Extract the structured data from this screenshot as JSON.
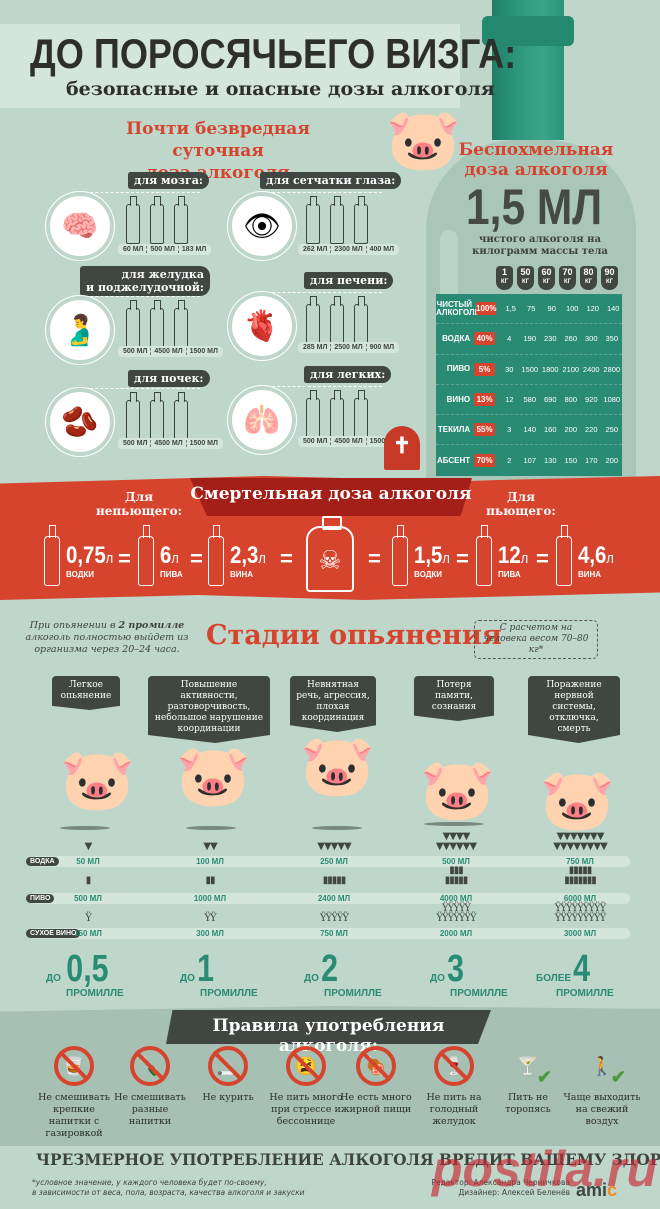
{
  "header": {
    "title": "ДО ПОРОСЯЧЬЕГО ВИЗГА:",
    "subtitle": "безопасные и опасные дозы алкоголя"
  },
  "safe_dose": {
    "title_line1": "Почти безвредная суточная",
    "title_line2": "доза алкоголя",
    "organs": [
      {
        "label": "для мозга:",
        "icon": "brain-icon",
        "values": [
          "60 МЛ",
          "500 МЛ",
          "183 МЛ"
        ]
      },
      {
        "label": "для сетчатки глаза:",
        "icon": "eye-icon",
        "values": [
          "262 МЛ",
          "2300 МЛ",
          "400 МЛ"
        ]
      },
      {
        "label_line1": "для желудка",
        "label_line2": "и поджелудочной:",
        "icon": "stomach-icon",
        "values": [
          "500 МЛ",
          "4500 МЛ",
          "1500 МЛ"
        ]
      },
      {
        "label": "для печени:",
        "icon": "liver-icon",
        "values": [
          "285 МЛ",
          "2500 МЛ",
          "900 МЛ"
        ]
      },
      {
        "label": "для почек:",
        "icon": "kidneys-icon",
        "values": [
          "500 МЛ",
          "4500 МЛ",
          "1500 МЛ"
        ]
      },
      {
        "label": "для легких:",
        "icon": "lungs-icon",
        "values": [
          "500 МЛ",
          "4500 МЛ",
          "1500 МЛ"
        ]
      }
    ]
  },
  "hangover_free": {
    "title_line1": "Беспохмельная",
    "title_line2": "доза алкоголя",
    "dose": "1,5 МЛ",
    "sub_line1": "чистого алкоголя на",
    "sub_line2": "килограмм массы тела",
    "weights": [
      {
        "num": "1",
        "pre": "НА",
        "unit": "КГ"
      },
      {
        "num": "50",
        "unit": "КГ"
      },
      {
        "num": "60",
        "unit": "КГ"
      },
      {
        "num": "70",
        "unit": "КГ"
      },
      {
        "num": "80",
        "unit": "КГ"
      },
      {
        "num": "90",
        "unit": "КГ"
      }
    ],
    "rows": [
      {
        "name": "ЧИСТЫЙ АЛКОГОЛЬ",
        "pct": "100%",
        "values": [
          "1,5",
          "75",
          "90",
          "100",
          "120",
          "140"
        ]
      },
      {
        "name": "ВОДКА",
        "pct": "40%",
        "values": [
          "4",
          "190",
          "230",
          "260",
          "300",
          "350"
        ]
      },
      {
        "name": "ПИВО",
        "pct": "5%",
        "values": [
          "30",
          "1500",
          "1800",
          "2100",
          "2400",
          "2800"
        ]
      },
      {
        "name": "ВИНО",
        "pct": "13%",
        "values": [
          "12",
          "580",
          "690",
          "800",
          "920",
          "1080"
        ]
      },
      {
        "name": "ТЕКИЛА",
        "pct": "55%",
        "values": [
          "3",
          "140",
          "160",
          "200",
          "220",
          "250"
        ]
      },
      {
        "name": "АБСЕНТ",
        "pct": "70%",
        "values": [
          "2",
          "107",
          "130",
          "150",
          "170",
          "200"
        ]
      }
    ]
  },
  "lethal": {
    "title": "Смертельная доза алкоголя",
    "non_drinker_line1": "Для",
    "non_drinker_line2": "непьющего:",
    "drinker_line1": "Для",
    "drinker_line2": "пьющего:",
    "non_drinker": [
      {
        "value": "0,75",
        "unit": "л",
        "drink": "ВОДКИ"
      },
      {
        "value": "6",
        "unit": "л",
        "drink": "ПИВА"
      },
      {
        "value": "2,3",
        "unit": "л",
        "drink": "ВИНА"
      }
    ],
    "drinker": [
      {
        "value": "1,5",
        "unit": "л",
        "drink": "ВОДКИ"
      },
      {
        "value": "12",
        "unit": "л",
        "drink": "ПИВА"
      },
      {
        "value": "4,6",
        "unit": "л",
        "drink": "ВИНА"
      }
    ],
    "equals": "="
  },
  "stages": {
    "note_pre": "При опьянении в ",
    "note_bold": "2 промилле",
    "note_post": " алкоголь полностью выйдет из организма через 20–24 часа.",
    "title": "Стадии опьянения",
    "calc_note": "С расчетом на человека весом 70–80 кг*",
    "descriptions": [
      "Легкое опьянение",
      "Повышение активности, разговорчивость, небольшое нарушение координации",
      "Невнятная речь, агрессия, плохая координация",
      "Потеря памяти, сознания",
      "Поражение нервной системы, отключка, смерть"
    ],
    "drinks": [
      {
        "label": "ВОДКА",
        "values": [
          "50 МЛ",
          "100 МЛ",
          "250 МЛ",
          "500 МЛ",
          "750 МЛ"
        ]
      },
      {
        "label": "ПИВО",
        "values": [
          "500 МЛ",
          "1000 МЛ",
          "2400 МЛ",
          "4000 МЛ",
          "6000 МЛ"
        ]
      },
      {
        "label": "СУХОЕ ВИНО",
        "values": [
          "150 МЛ",
          "300 МЛ",
          "750 МЛ",
          "2000 МЛ",
          "3000 МЛ"
        ]
      }
    ],
    "permille": [
      {
        "pre": "ДО",
        "num": "0,5",
        "unit": "ПРОМИЛЛЕ"
      },
      {
        "pre": "ДО",
        "num": "1",
        "unit": "ПРОМИЛЛЕ"
      },
      {
        "pre": "ДО",
        "num": "2",
        "unit": "ПРОМИЛЛЕ"
      },
      {
        "pre": "ДО",
        "num": "3",
        "unit": "ПРОМИЛЛЕ"
      },
      {
        "pre": "БОЛЕЕ",
        "num": "4",
        "unit": "ПРОМИЛЛЕ"
      }
    ]
  },
  "rules": {
    "title": "Правила употребления алкоголя:",
    "items": [
      {
        "label": "Не смешивать крепкие напитки с газировкой",
        "icon": "no-mixing-soda-icon",
        "allowed": false
      },
      {
        "label": "Не смешивать разные напитки",
        "icon": "no-mixing-drinks-icon",
        "allowed": false
      },
      {
        "label": "Не курить",
        "icon": "no-smoking-icon",
        "allowed": false
      },
      {
        "label": "Не пить много при стрессе и бессоннице",
        "icon": "no-stress-drinking-icon",
        "allowed": false
      },
      {
        "label": "Не есть много жирной пищи",
        "icon": "no-fatty-food-icon",
        "allowed": false
      },
      {
        "label": "Не пить на голодный желудок",
        "icon": "no-empty-stomach-icon",
        "allowed": false
      },
      {
        "label": "Пить не торопясь",
        "icon": "cocktail-icon",
        "allowed": true
      },
      {
        "label": "Чаще выходить на свежий воздух",
        "icon": "fresh-air-icon",
        "allowed": true
      }
    ]
  },
  "footer": {
    "warning": "ЧРЕЗМЕРНОЕ УПОТРЕБЛЕНИЕ АЛКОГОЛЯ ВРЕДИТ ВАШЕМУ ЗДОРОВЬЮ",
    "footnote_line1": "*условное значение, у каждого человека будет по-своему,",
    "footnote_line2": "в зависимости от веса, пола, возраста, качества алкоголя и закуски",
    "editor": "Редактор: Александра Черничкова",
    "designer": "Дизайнер: Алексей Беленёв",
    "logo_main": "ami",
    "logo_accent": "c",
    "watermark": "postila.ru"
  },
  "colors": {
    "background": "#bfd6cb",
    "accent_red": "#d6442e",
    "dark_red": "#a31f18",
    "teal": "#2a8b74",
    "dark_gray": "#404641"
  }
}
